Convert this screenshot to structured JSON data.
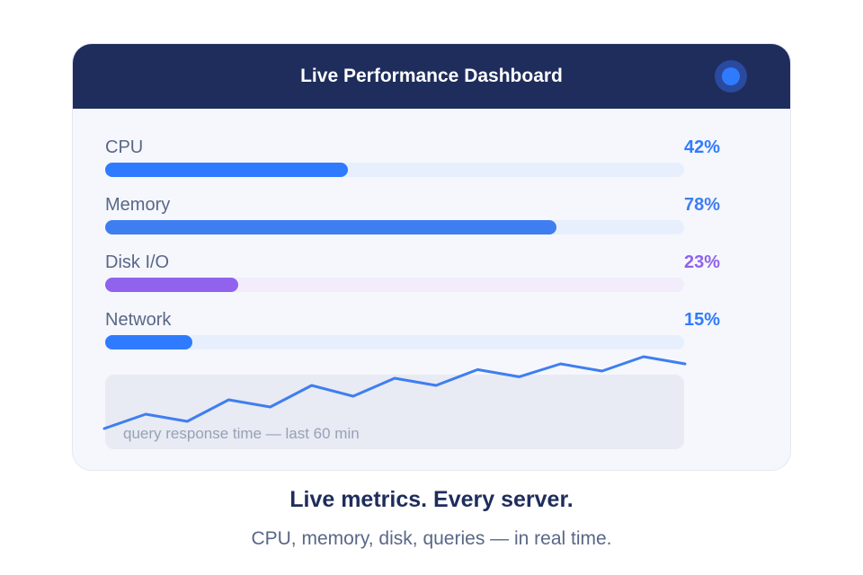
{
  "dashboard": {
    "title": "Live Performance Dashboard",
    "status_indicator": {
      "icon": "live-status-dot-icon",
      "color": "#2f7bff"
    }
  },
  "metrics": [
    {
      "label": "CPU",
      "value_text": "42%",
      "percent": 42,
      "color": "#2f7bff",
      "track_color": "#e8effc"
    },
    {
      "label": "Memory",
      "value_text": "78%",
      "percent": 78,
      "color": "#3f7ef0",
      "track_color": "#e8effc"
    },
    {
      "label": "Disk I/O",
      "value_text": "23%",
      "percent": 23,
      "color": "#9062ee",
      "track_color": "#f2ecfc"
    },
    {
      "label": "Network",
      "value_text": "15%",
      "percent": 15,
      "color": "#2f7bff",
      "track_color": "#e8effc"
    }
  ],
  "sparkline": {
    "caption": "query response time — last 60 min",
    "color": "#3f7ef0",
    "relative_values": [
      0.0,
      0.2,
      0.1,
      0.4,
      0.3,
      0.6,
      0.45,
      0.7,
      0.6,
      0.82,
      0.72,
      0.9,
      0.8,
      1.0,
      0.9
    ]
  },
  "footer": {
    "tagline": "Live metrics. Every server.",
    "subtagline": "CPU, memory, disk, queries — in real time."
  }
}
